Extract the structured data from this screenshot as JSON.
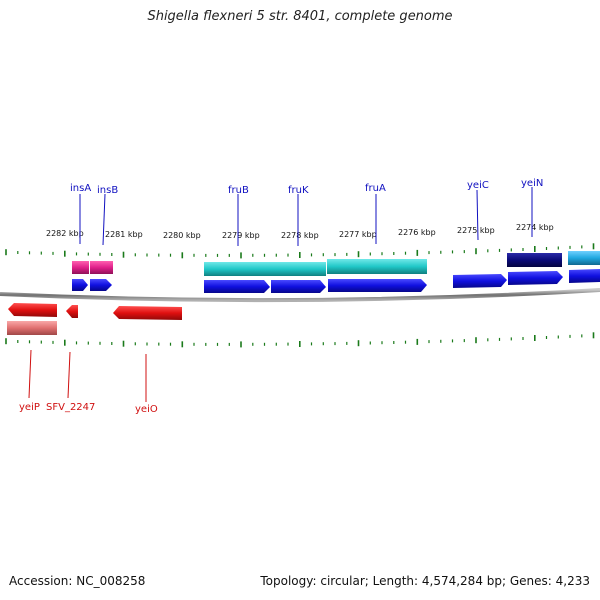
{
  "title": "Shigella flexneri 5 str. 8401, complete genome",
  "footer": {
    "accession": "Accession: NC_008258",
    "summary": "Topology: circular; Length: 4,574,284 bp; Genes: 4,233"
  },
  "axis_ticks": [
    "2282 kbp",
    "2281 kbp",
    "2280 kbp",
    "2279 kbp",
    "2278 kbp",
    "2277 kbp",
    "2276 kbp",
    "2275 kbp",
    "2274 kbp"
  ],
  "gene_labels_top": [
    "insA",
    "insB",
    "fruB",
    "fruK",
    "fruA",
    "yeiC",
    "yeiN"
  ],
  "gene_labels_bottom": [
    "yeiP",
    "SFV_2247",
    "yeiO"
  ],
  "colors": {
    "forward_cds": "#1010e0",
    "forward_feature_magenta": "#e0208a",
    "forward_feature_cyan": "#20c8c8",
    "forward_feature_navy": "#0a0a78",
    "forward_feature_sky": "#20a8e0",
    "reverse_cds": "#e01010",
    "reverse_feature": "#e07070",
    "tick": "#1a7a1a",
    "backbone": "#808080",
    "label_top": "#1010c0",
    "label_bottom": "#d01010"
  }
}
